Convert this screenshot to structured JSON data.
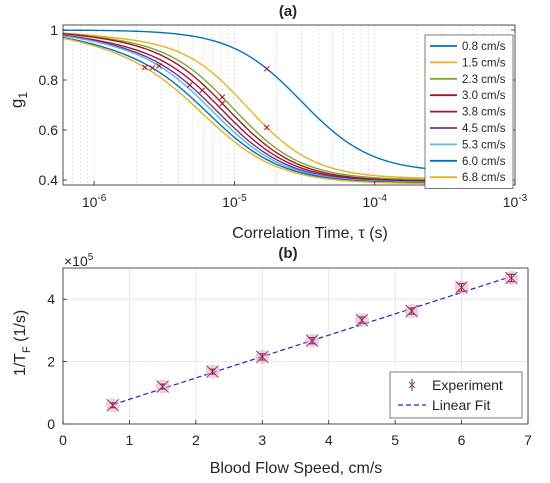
{
  "chart_data": [
    {
      "type": "line",
      "title": "(a)",
      "xlabel": "Correlation Time, τ (s)",
      "ylabel": "g",
      "ylabel_subscript": "1",
      "xscale": "log",
      "xlim": [
        6e-07,
        0.001
      ],
      "ylim": [
        0.38,
        1.02
      ],
      "x_tick_labels": [
        {
          "base": "10",
          "exp": "-6",
          "value": 1e-06
        },
        {
          "base": "10",
          "exp": "-5",
          "value": 1e-05
        },
        {
          "base": "10",
          "exp": "-4",
          "value": 0.0001
        },
        {
          "base": "10",
          "exp": "-3",
          "value": 0.001
        }
      ],
      "y_ticks": [
        0.4,
        0.6,
        0.8,
        1.0
      ],
      "y_tick_labels": [
        "0.4",
        "0.6",
        "0.8",
        "1"
      ],
      "grid": "x-minor-dotted",
      "legend_position": "right",
      "series": [
        {
          "name": "0.8 cm/s",
          "color": "#0072BD",
          "tau_half": 3e-05,
          "width": 0.55,
          "dip": 0.0,
          "plateau": 0.43,
          "xmax": 0.00046,
          "marker_x": 1.7e-05
        },
        {
          "name": "1.5 cm/s",
          "color": "#EDB120",
          "tau_half": 1.2e-05,
          "width": 0.53,
          "dip": 0.02,
          "plateau": 0.405,
          "xmax": 0.00043,
          "marker_x": 1.7e-05
        },
        {
          "name": "2.3 cm/s",
          "color": "#77AC30",
          "tau_half": 9.5e-06,
          "width": 0.54,
          "dip": 0.02,
          "plateau": 0.4,
          "xmax": 0.00042,
          "marker_x": 8.2e-06
        },
        {
          "name": "3.0 cm/s",
          "color": "#A2142F",
          "tau_half": 8.7e-06,
          "width": 0.55,
          "dip": 0.02,
          "plateau": 0.395,
          "xmax": 0.00041,
          "marker_x": 8.2e-06
        },
        {
          "name": "3.8 cm/s",
          "color": "#A2142F",
          "tau_half": 8e-06,
          "width": 0.55,
          "dip": 0.03,
          "plateau": 0.393,
          "xmax": 0.0004,
          "marker_x": 5.9e-06
        },
        {
          "name": "4.5 cm/s",
          "color": "#7E2F8E",
          "tau_half": 7.3e-06,
          "width": 0.56,
          "dip": 0.03,
          "plateau": 0.39,
          "xmax": 0.00038,
          "marker_x": 4.8e-06
        },
        {
          "name": "5.3 cm/s",
          "color": "#4DBEEE",
          "tau_half": 6.8e-06,
          "width": 0.56,
          "dip": 0.03,
          "plateau": 0.39,
          "xmax": 0.00034,
          "marker_x": 2.9e-06
        },
        {
          "name": "6.0 cm/s",
          "color": "#0072BD",
          "tau_half": 6.3e-06,
          "width": 0.57,
          "dip": 0.04,
          "plateau": 0.388,
          "xmax": 0.00032,
          "marker_x": 2.6e-06
        },
        {
          "name": "6.8 cm/s",
          "color": "#EDB120",
          "tau_half": 5.8e-06,
          "width": 0.58,
          "dip": 0.04,
          "plateau": 0.385,
          "xmax": 0.0003,
          "marker_x": 2.3e-06
        }
      ]
    },
    {
      "type": "scatter",
      "title": "(b)",
      "xlabel": "Blood Flow Speed, cm/s",
      "ylabel": "1/T",
      "ylabel_subscript": "F",
      "ylabel_unit": "(1/s)",
      "y_multiplier_base": "×10",
      "y_multiplier_exp": "5",
      "xlim": [
        0,
        7
      ],
      "ylim": [
        0,
        5
      ],
      "x_ticks": [
        0,
        1,
        2,
        3,
        4,
        5,
        6,
        7
      ],
      "y_ticks": [
        0,
        2,
        4
      ],
      "grid": true,
      "legend_position": "bottom-right",
      "series": [
        {
          "name": "Experiment",
          "color": "#A2142F",
          "x": [
            0.75,
            1.5,
            2.25,
            3.0,
            3.75,
            4.5,
            5.25,
            6.0,
            6.75
          ],
          "y": [
            0.6,
            1.2,
            1.68,
            2.15,
            2.67,
            3.33,
            3.62,
            4.38,
            4.68
          ],
          "err": [
            0.08,
            0.08,
            0.08,
            0.1,
            0.1,
            0.1,
            0.1,
            0.12,
            0.12
          ]
        },
        {
          "name": "Linear Fit",
          "color": "#2222CC",
          "x": [
            0.75,
            6.75
          ],
          "y": [
            0.62,
            4.73
          ]
        }
      ]
    }
  ]
}
